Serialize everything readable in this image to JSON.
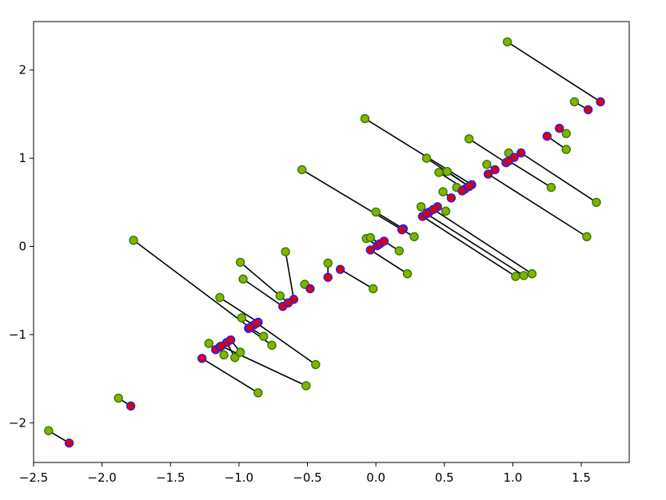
{
  "chart_data": {
    "type": "scatter",
    "title": "",
    "xlabel": "",
    "ylabel": "",
    "xlim": [
      -2.5,
      1.85
    ],
    "ylim": [
      -2.45,
      2.55
    ],
    "grid": false,
    "legend": "none",
    "xticks": [
      -2.5,
      -2.0,
      -1.5,
      -1.0,
      -0.5,
      0.0,
      0.5,
      1.0,
      1.5
    ],
    "xtick_labels": [
      "−2.5",
      "−2.0",
      "−1.5",
      "−1.0",
      "−0.5",
      "0.0",
      "0.5",
      "1.0",
      "1.5"
    ],
    "yticks": [
      -2,
      -1,
      0,
      1,
      2
    ],
    "ytick_labels": [
      "−2",
      "−1",
      "0",
      "1",
      "2"
    ],
    "colors": {
      "original_fill": "#88b000",
      "original_edge": "#2e7d00",
      "projected_fill": "#e00000",
      "projected_edge": "#2020ff",
      "line": "#000000"
    },
    "pairs": [
      {
        "original": [
          -2.39,
          -2.09
        ],
        "projected": [
          -2.24,
          -2.23
        ]
      },
      {
        "original": [
          -1.88,
          -1.72
        ],
        "projected": [
          -1.79,
          -1.81
        ]
      },
      {
        "original": [
          -1.77,
          0.07
        ],
        "projected": [
          -0.92,
          -0.92
        ]
      },
      {
        "original": [
          -1.14,
          -0.58
        ],
        "projected": [
          -0.86,
          -0.86
        ]
      },
      {
        "original": [
          -1.22,
          -1.1
        ],
        "projected": [
          -1.17,
          -1.17
        ]
      },
      {
        "original": [
          -1.11,
          -1.23
        ],
        "projected": [
          -1.14,
          -1.14
        ]
      },
      {
        "original": [
          -1.03,
          -1.26
        ],
        "projected": [
          -1.09,
          -1.09
        ]
      },
      {
        "original": [
          -0.99,
          -1.2
        ],
        "projected": [
          -1.06,
          -1.06
        ]
      },
      {
        "original": [
          -0.86,
          -1.66
        ],
        "projected": [
          -1.27,
          -1.27
        ]
      },
      {
        "original": [
          -0.51,
          -1.58
        ],
        "projected": [
          -1.13,
          -1.13
        ]
      },
      {
        "original": [
          -0.99,
          -0.18
        ],
        "projected": [
          -0.64,
          -0.64
        ]
      },
      {
        "original": [
          -0.97,
          -0.37
        ],
        "projected": [
          -0.68,
          -0.68
        ]
      },
      {
        "original": [
          -0.76,
          -1.12
        ],
        "projected": [
          -0.93,
          -0.93
        ]
      },
      {
        "original": [
          -0.98,
          -0.81
        ],
        "projected": [
          -0.89,
          -0.89
        ]
      },
      {
        "original": [
          -0.82,
          -1.02
        ],
        "projected": [
          -0.92,
          -0.92
        ]
      },
      {
        "original": [
          -0.44,
          -1.34
        ],
        "projected": [
          -0.87,
          -0.87
        ]
      },
      {
        "original": [
          -0.66,
          -0.06
        ],
        "projected": [
          -0.6,
          -0.6
        ]
      },
      {
        "original": [
          -0.7,
          -0.56
        ],
        "projected": [
          -0.64,
          -0.64
        ]
      },
      {
        "original": [
          -0.52,
          -0.43
        ],
        "projected": [
          -0.48,
          -0.48
        ]
      },
      {
        "original": [
          -0.35,
          -0.19
        ],
        "projected": [
          -0.35,
          -0.35
        ]
      },
      {
        "original": [
          -0.54,
          0.87
        ],
        "projected": [
          0.19,
          0.19
        ]
      },
      {
        "original": [
          -0.02,
          -0.48
        ],
        "projected": [
          -0.26,
          -0.26
        ]
      },
      {
        "original": [
          -0.08,
          1.45
        ],
        "projected": [
          0.7,
          0.7
        ]
      },
      {
        "original": [
          0.0,
          0.39
        ],
        "projected": [
          0.2,
          0.2
        ]
      },
      {
        "original": [
          -0.07,
          0.09
        ],
        "projected": [
          0.01,
          0.01
        ]
      },
      {
        "original": [
          -0.04,
          0.1
        ],
        "projected": [
          0.03,
          0.03
        ]
      },
      {
        "original": [
          0.17,
          -0.05
        ],
        "projected": [
          0.06,
          0.06
        ]
      },
      {
        "original": [
          0.23,
          -0.31
        ],
        "projected": [
          -0.04,
          -0.04
        ]
      },
      {
        "original": [
          0.28,
          0.11
        ],
        "projected": [
          0.19,
          0.19
        ]
      },
      {
        "original": [
          0.37,
          1.0
        ],
        "projected": [
          0.68,
          0.68
        ]
      },
      {
        "original": [
          0.46,
          0.84
        ],
        "projected": [
          0.65,
          0.65
        ]
      },
      {
        "original": [
          0.52,
          0.85
        ],
        "projected": [
          0.68,
          0.68
        ]
      },
      {
        "original": [
          0.49,
          0.62
        ],
        "projected": [
          0.55,
          0.55
        ]
      },
      {
        "original": [
          0.59,
          0.67
        ],
        "projected": [
          0.63,
          0.63
        ]
      },
      {
        "original": [
          0.51,
          0.4
        ],
        "projected": [
          0.45,
          0.45
        ]
      },
      {
        "original": [
          0.33,
          0.45
        ],
        "projected": [
          0.39,
          0.39
        ]
      },
      {
        "original": [
          1.02,
          -0.34
        ],
        "projected": [
          0.34,
          0.34
        ]
      },
      {
        "original": [
          1.08,
          -0.33
        ],
        "projected": [
          0.37,
          0.37
        ]
      },
      {
        "original": [
          1.14,
          -0.31
        ],
        "projected": [
          0.42,
          0.42
        ]
      },
      {
        "original": [
          0.68,
          1.22
        ],
        "projected": [
          0.95,
          0.95
        ]
      },
      {
        "original": [
          0.81,
          0.93
        ],
        "projected": [
          0.87,
          0.87
        ]
      },
      {
        "original": [
          0.97,
          1.06
        ],
        "projected": [
          1.01,
          1.01
        ]
      },
      {
        "original": [
          1.28,
          0.67
        ],
        "projected": [
          0.97,
          0.97
        ]
      },
      {
        "original": [
          1.54,
          0.11
        ],
        "projected": [
          0.82,
          0.82
        ]
      },
      {
        "original": [
          1.61,
          0.5
        ],
        "projected": [
          1.06,
          1.06
        ]
      },
      {
        "original": [
          1.39,
          1.1
        ],
        "projected": [
          1.25,
          1.25
        ]
      },
      {
        "original": [
          1.39,
          1.28
        ],
        "projected": [
          1.34,
          1.34
        ]
      },
      {
        "original": [
          1.45,
          1.64
        ],
        "projected": [
          1.55,
          1.55
        ]
      },
      {
        "original": [
          0.96,
          2.32
        ],
        "projected": [
          1.64,
          1.64
        ]
      }
    ]
  }
}
